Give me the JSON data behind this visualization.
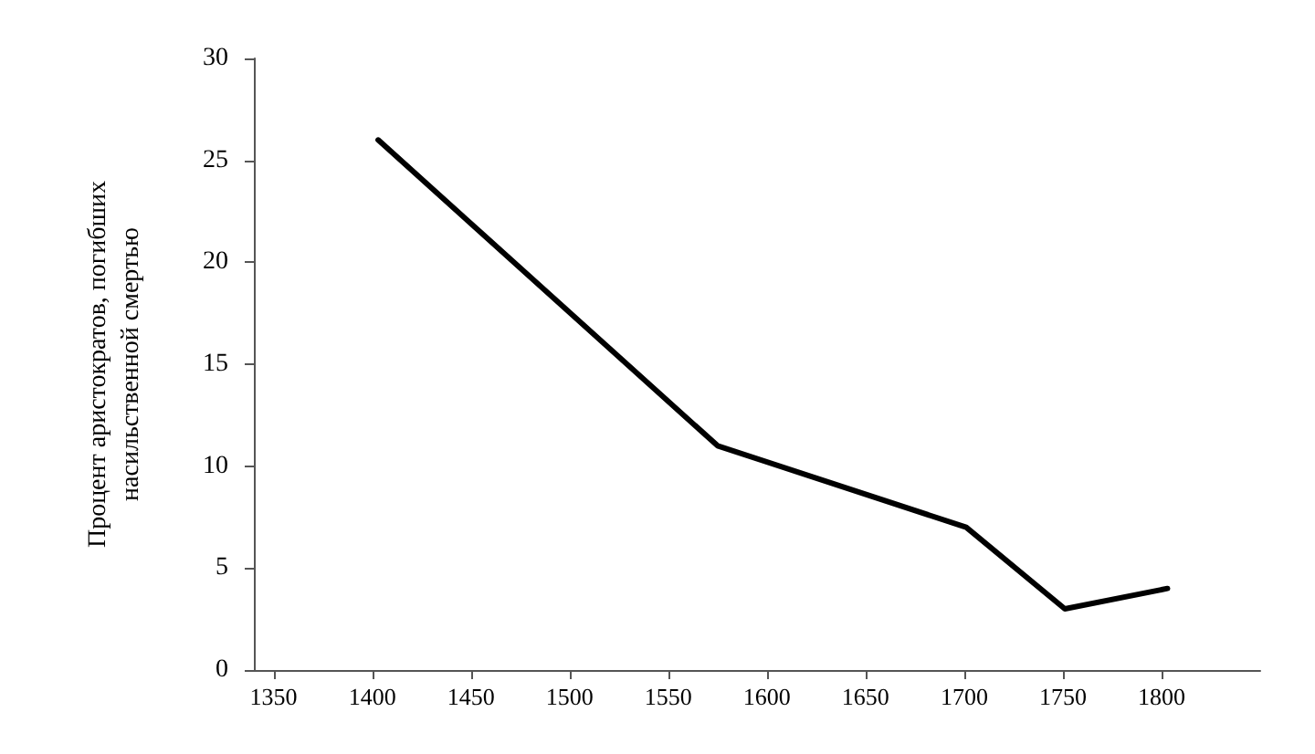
{
  "chart_data": {
    "type": "line",
    "ylabel": "Процент аристократов, погибших\nнасильственной смертью",
    "x": [
      1403,
      1575,
      1701,
      1751,
      1803
    ],
    "series": [
      {
        "color": "#000000",
        "values": [
          26,
          11,
          7,
          3,
          4
        ]
      }
    ],
    "xlim": [
      1340,
      1850
    ],
    "xticks": [
      1350,
      1400,
      1450,
      1500,
      1550,
      1600,
      1650,
      1700,
      1750,
      1800
    ],
    "ylim": [
      0,
      30
    ],
    "yticks": [
      0,
      5,
      10,
      15,
      20,
      25,
      30
    ],
    "grid": false,
    "marker": "none",
    "line_style": "solid"
  }
}
